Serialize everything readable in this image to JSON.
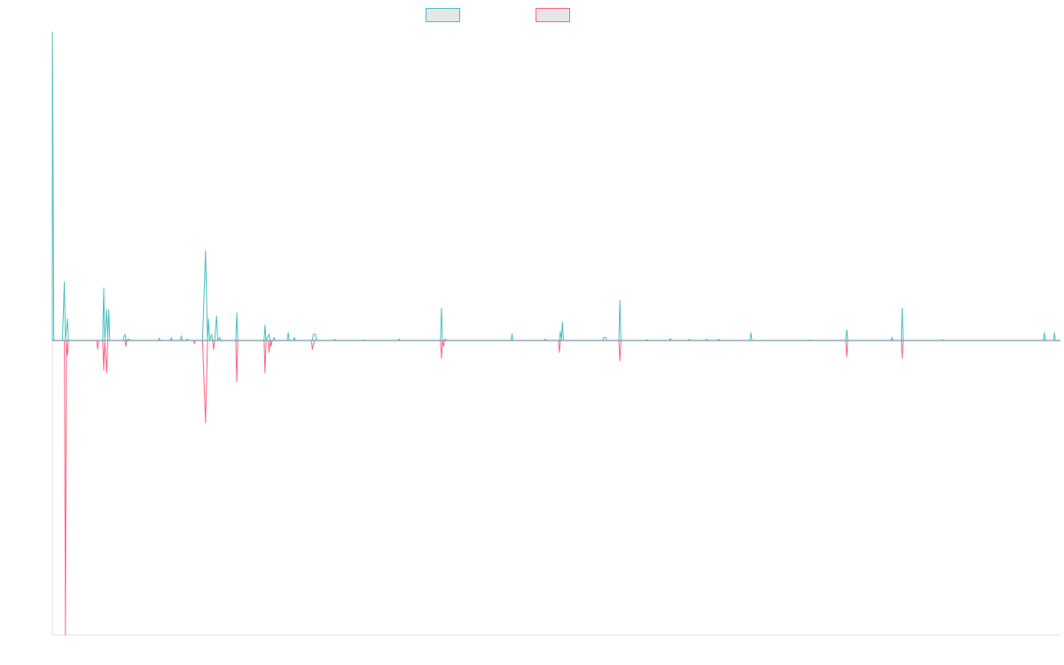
{
  "chart_data": {
    "type": "line",
    "title": "",
    "xlabel": "",
    "ylabel": "",
    "xlim": [
      0,
      1000
    ],
    "ylim": [
      -100,
      100
    ],
    "grid": false,
    "legend": "top-center",
    "series": [
      {
        "color": "#4bc0c0",
        "points": [
          [
            0,
            0
          ],
          [
            0.2,
            100
          ],
          [
            1.5,
            0
          ],
          [
            10,
            0
          ],
          [
            12,
            19
          ],
          [
            13,
            0
          ],
          [
            15,
            7
          ],
          [
            16,
            0
          ],
          [
            50,
            0
          ],
          [
            51,
            17
          ],
          [
            52,
            0
          ],
          [
            54,
            10
          ],
          [
            55,
            0
          ],
          [
            56,
            10
          ],
          [
            57,
            0
          ],
          [
            70,
            0
          ],
          [
            72,
            2
          ],
          [
            73,
            0
          ],
          [
            76,
            0.5
          ],
          [
            77,
            0
          ],
          [
            105,
            0
          ],
          [
            106,
            0.8
          ],
          [
            107,
            0
          ],
          [
            117,
            0
          ],
          [
            118,
            1
          ],
          [
            119,
            0
          ],
          [
            127,
            0
          ],
          [
            128,
            1.5
          ],
          [
            129,
            0
          ],
          [
            133,
            0
          ],
          [
            134,
            0.5
          ],
          [
            135,
            0
          ],
          [
            149,
            0
          ],
          [
            152,
            29
          ],
          [
            154,
            0
          ],
          [
            155,
            7
          ],
          [
            156,
            0
          ],
          [
            158,
            2
          ],
          [
            159,
            0
          ],
          [
            161,
            0
          ],
          [
            163,
            8
          ],
          [
            164,
            0
          ],
          [
            166,
            1
          ],
          [
            167,
            0
          ],
          [
            182,
            0
          ],
          [
            183,
            9
          ],
          [
            184,
            0
          ],
          [
            210,
            0
          ],
          [
            211,
            5
          ],
          [
            212,
            0
          ],
          [
            215,
            2
          ],
          [
            216,
            0
          ],
          [
            219,
            0
          ],
          [
            220,
            1
          ],
          [
            221,
            0
          ],
          [
            233,
            0
          ],
          [
            234,
            2.5
          ],
          [
            235,
            0
          ],
          [
            239,
            0
          ],
          [
            240,
            1
          ],
          [
            241,
            0
          ],
          [
            258,
            0
          ],
          [
            259,
            2
          ],
          [
            261,
            2
          ],
          [
            262,
            0
          ],
          [
            279,
            0
          ],
          [
            280,
            0.4
          ],
          [
            281,
            0
          ],
          [
            309,
            0
          ],
          [
            310,
            0.2
          ],
          [
            311,
            0
          ],
          [
            343,
            0
          ],
          [
            344,
            0.5
          ],
          [
            345,
            0
          ],
          [
            385,
            0
          ],
          [
            386,
            10.5
          ],
          [
            387,
            0
          ],
          [
            389,
            0
          ],
          [
            390,
            0.5
          ],
          [
            391,
            0
          ],
          [
            455,
            0
          ],
          [
            456,
            2
          ],
          [
            457,
            0
          ],
          [
            488,
            0
          ],
          [
            489,
            0.5
          ],
          [
            490,
            0
          ],
          [
            503,
            0
          ],
          [
            504,
            3
          ],
          [
            505,
            0
          ],
          [
            506,
            6
          ],
          [
            507,
            0
          ],
          [
            546,
            0
          ],
          [
            547,
            1
          ],
          [
            549,
            1
          ],
          [
            550,
            0
          ],
          [
            562,
            0
          ],
          [
            563,
            13
          ],
          [
            564,
            0
          ],
          [
            589,
            0
          ],
          [
            590,
            0.3
          ],
          [
            591,
            0
          ],
          [
            612,
            0
          ],
          [
            613,
            0.7
          ],
          [
            614,
            0
          ],
          [
            631,
            0
          ],
          [
            632,
            0.4
          ],
          [
            633,
            0
          ],
          [
            648,
            0
          ],
          [
            649,
            0.5
          ],
          [
            650,
            0
          ],
          [
            660,
            0
          ],
          [
            661,
            0.5
          ],
          [
            662,
            0
          ],
          [
            692,
            0
          ],
          [
            693,
            2.5
          ],
          [
            694,
            0
          ],
          [
            750,
            0
          ],
          [
            751,
            0.2
          ],
          [
            752,
            0
          ],
          [
            787,
            0
          ],
          [
            788,
            3.5
          ],
          [
            789,
            0
          ],
          [
            832,
            0
          ],
          [
            833,
            1
          ],
          [
            834,
            0
          ],
          [
            842,
            0
          ],
          [
            843,
            10.5
          ],
          [
            844,
            0
          ],
          [
            882,
            0
          ],
          [
            883,
            0.3
          ],
          [
            884,
            0
          ],
          [
            983,
            0
          ],
          [
            984,
            2.5
          ],
          [
            985,
            0
          ],
          [
            993,
            0
          ],
          [
            994,
            2.5
          ],
          [
            995,
            0
          ],
          [
            1000,
            0
          ]
        ]
      },
      {
        "color": "#ff6384",
        "points": [
          [
            0,
            0
          ],
          [
            12,
            0
          ],
          [
            13,
            -100
          ],
          [
            14,
            0
          ],
          [
            15,
            -5
          ],
          [
            16,
            0
          ],
          [
            44,
            0
          ],
          [
            45,
            -3
          ],
          [
            46,
            0
          ],
          [
            50,
            0
          ],
          [
            51,
            -10
          ],
          [
            52,
            0
          ],
          [
            54,
            -11
          ],
          [
            55,
            0
          ],
          [
            72,
            0
          ],
          [
            73,
            -2
          ],
          [
            74,
            0
          ],
          [
            140,
            0
          ],
          [
            141,
            -1
          ],
          [
            142,
            0
          ],
          [
            149,
            0
          ],
          [
            152,
            -28
          ],
          [
            154,
            0
          ],
          [
            159,
            0
          ],
          [
            160,
            -3
          ],
          [
            161,
            0
          ],
          [
            182,
            0
          ],
          [
            183,
            -14
          ],
          [
            184,
            0
          ],
          [
            210,
            0
          ],
          [
            211,
            -11
          ],
          [
            212,
            0
          ],
          [
            214,
            0
          ],
          [
            215,
            -4
          ],
          [
            216,
            0
          ],
          [
            217,
            -2
          ],
          [
            218,
            0
          ],
          [
            257,
            0
          ],
          [
            258,
            -3
          ],
          [
            260,
            0
          ],
          [
            385,
            0
          ],
          [
            386,
            -6
          ],
          [
            387,
            0
          ],
          [
            388,
            -2
          ],
          [
            389,
            0
          ],
          [
            502,
            0
          ],
          [
            503,
            -4
          ],
          [
            504,
            0
          ],
          [
            562,
            0
          ],
          [
            563,
            -7
          ],
          [
            564,
            0
          ],
          [
            787,
            0
          ],
          [
            788,
            -5.5
          ],
          [
            789,
            0
          ],
          [
            842,
            0
          ],
          [
            843,
            -6
          ],
          [
            844,
            0
          ],
          [
            1000,
            0
          ]
        ]
      }
    ]
  },
  "colors": {
    "axis": "#e0e0e0",
    "legend_fill": "#e6e6e6"
  }
}
